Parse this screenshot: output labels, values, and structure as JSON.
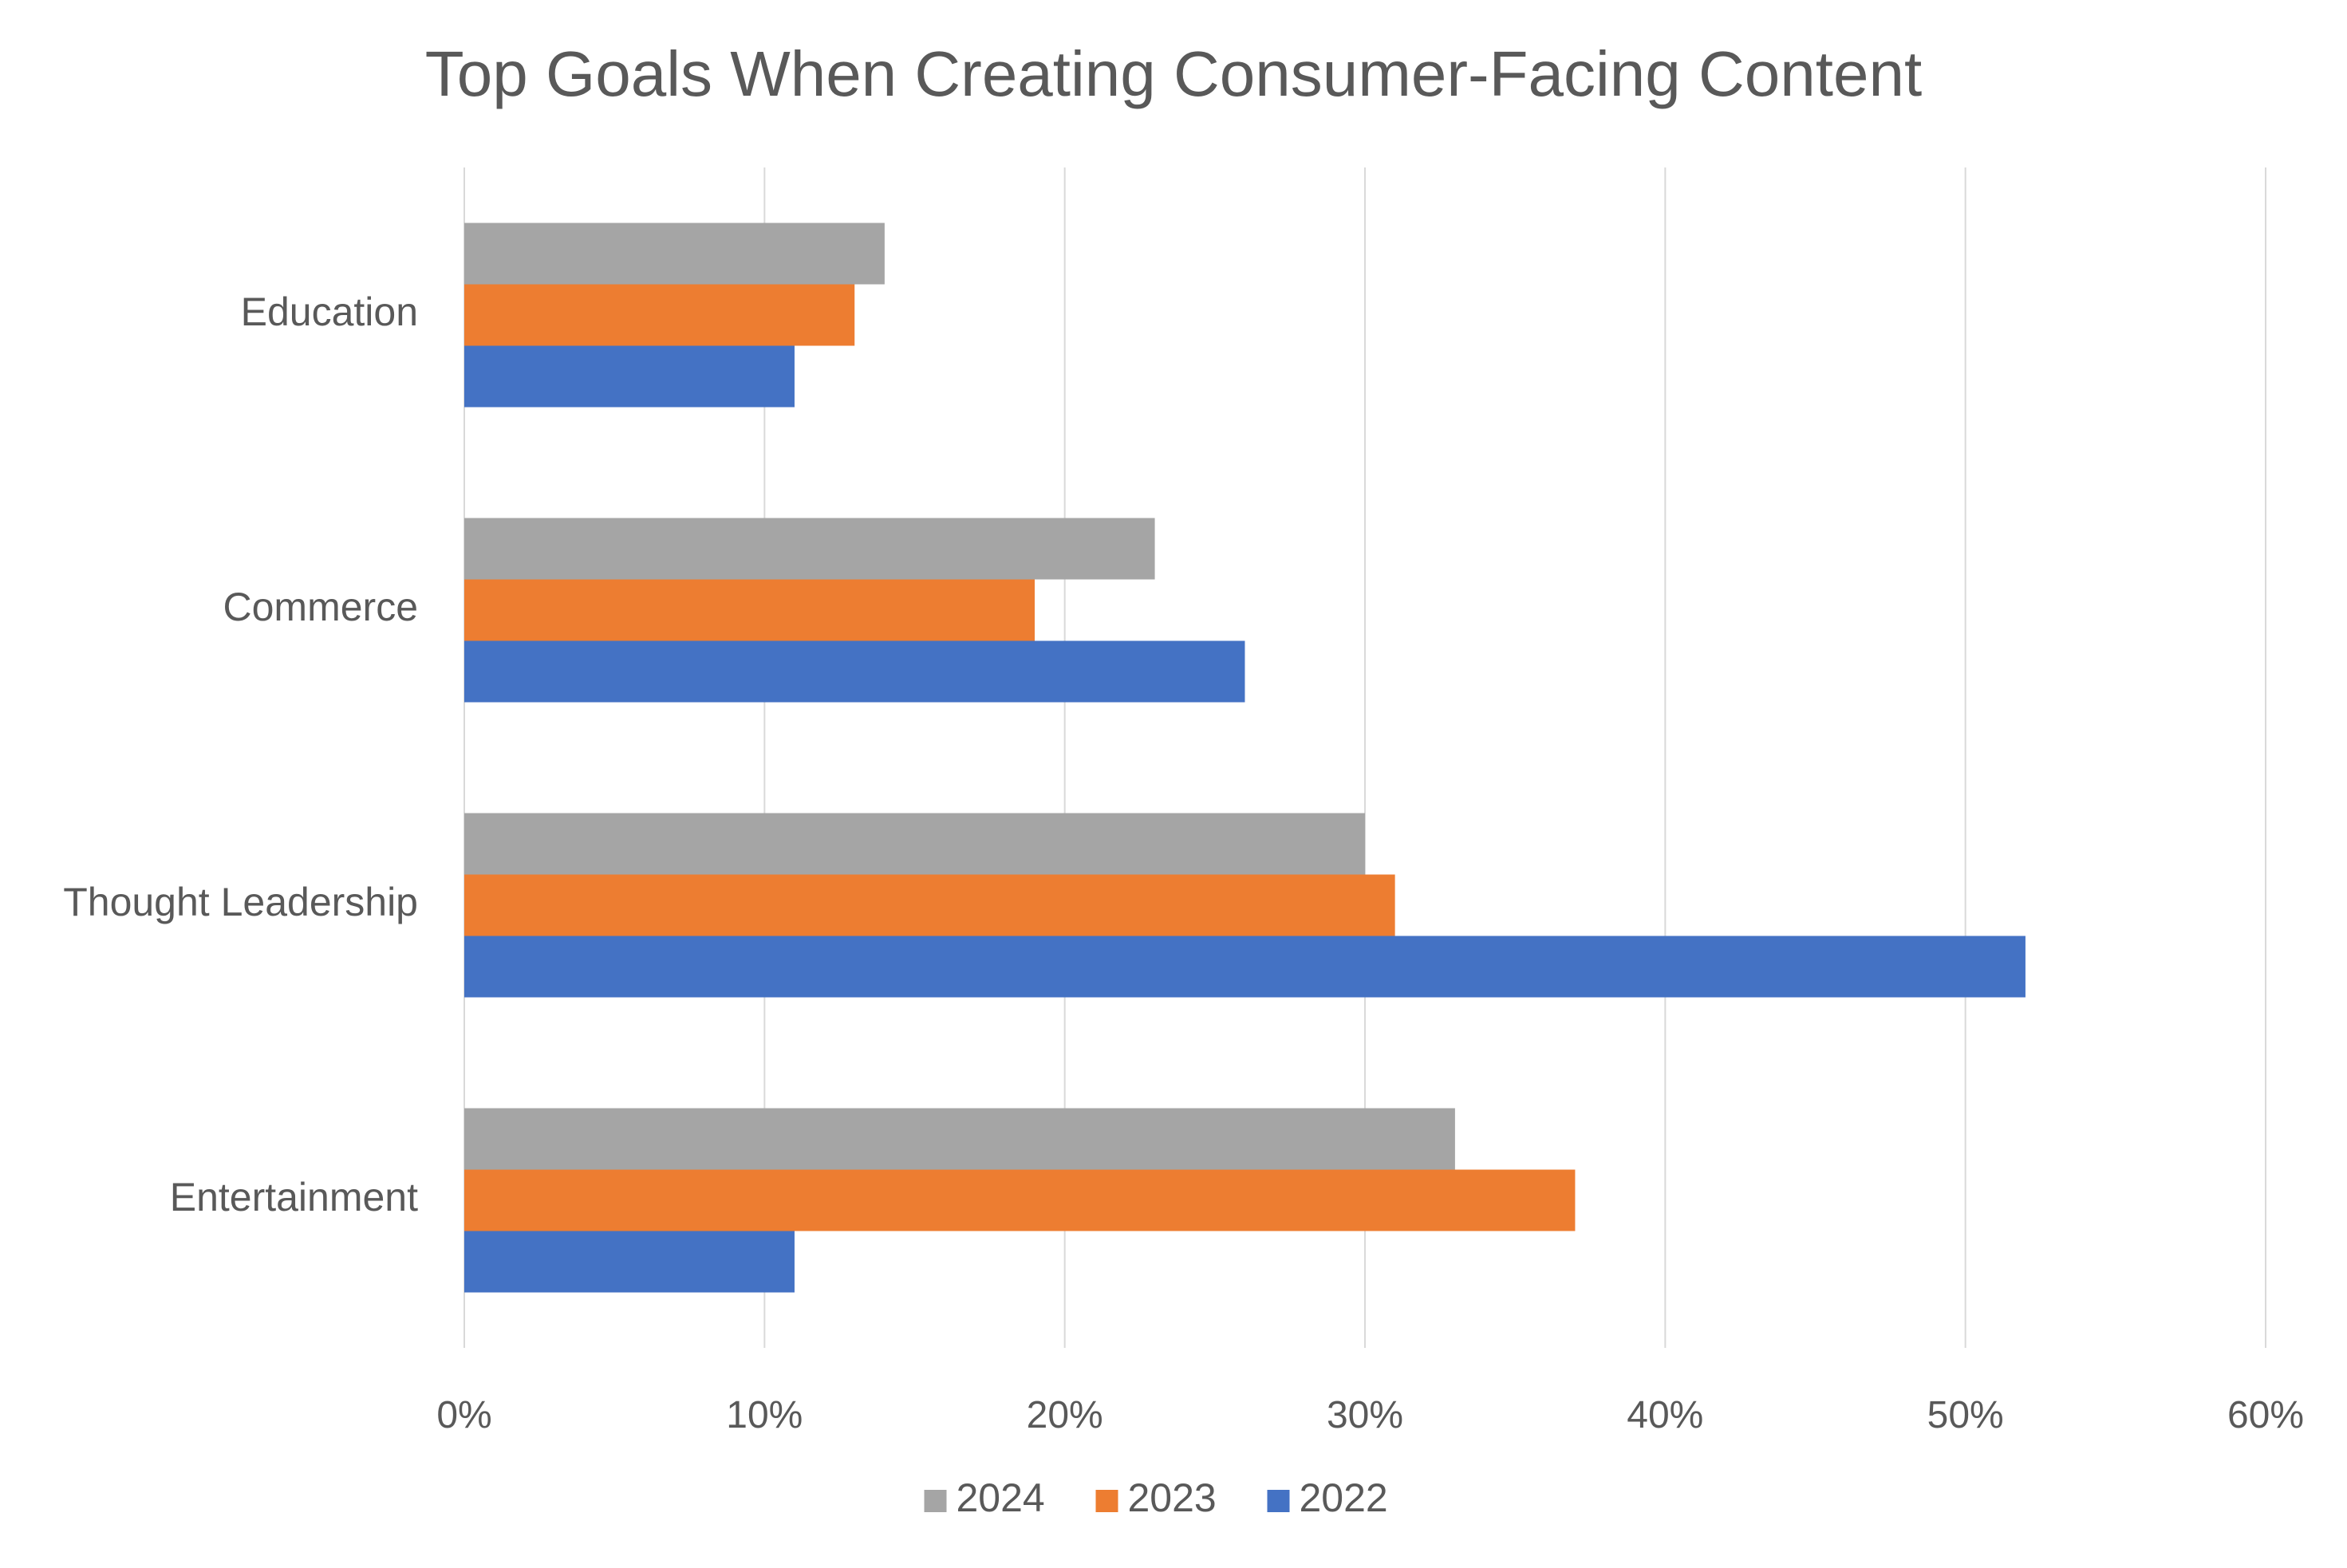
{
  "chart_data": {
    "type": "bar",
    "orientation": "horizontal",
    "title": "Top Goals When Creating Consumer-Facing Content",
    "xlabel": "",
    "ylabel": "",
    "categories": [
      "Education",
      "Commerce",
      "Thought Leadership",
      "Entertainment"
    ],
    "series": [
      {
        "name": "2024",
        "color": "#a5a5a5",
        "values": [
          14,
          23,
          30,
          33
        ]
      },
      {
        "name": "2023",
        "color": "#ed7d31",
        "values": [
          13,
          19,
          31,
          37
        ]
      },
      {
        "name": "2022",
        "color": "#4472c4",
        "values": [
          11,
          26,
          52,
          11
        ]
      }
    ],
    "xlim": [
      0,
      60
    ],
    "x_ticks": [
      0,
      10,
      20,
      30,
      40,
      50,
      60
    ],
    "x_tick_labels": [
      "0%",
      "10%",
      "20%",
      "30%",
      "40%",
      "50%",
      "60%"
    ],
    "value_unit": "%",
    "grid": "vertical",
    "legend_position": "bottom"
  }
}
